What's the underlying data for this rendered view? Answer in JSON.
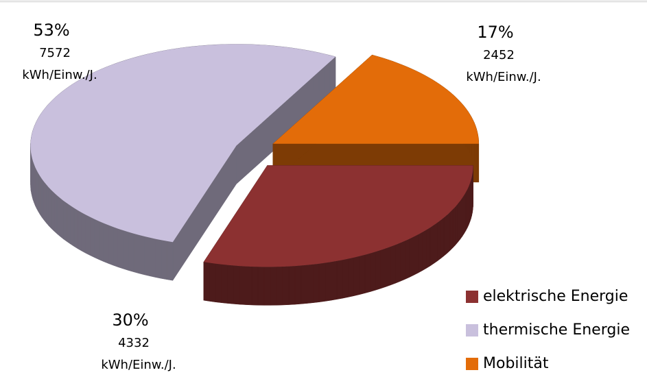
{
  "chart_data": {
    "type": "pie3d",
    "categories": [
      "elektrische Energie",
      "thermische Energie",
      "Mobilität"
    ],
    "values": [
      30,
      53,
      17
    ],
    "value_labels": [
      "30%",
      "53%",
      "17%"
    ],
    "amounts": [
      4332,
      7572,
      2452
    ],
    "unit": "kWh/Einw./J.",
    "colors": [
      "#8c3131",
      "#c9c0dd",
      "#e36c09"
    ],
    "legend": "lower right"
  }
}
